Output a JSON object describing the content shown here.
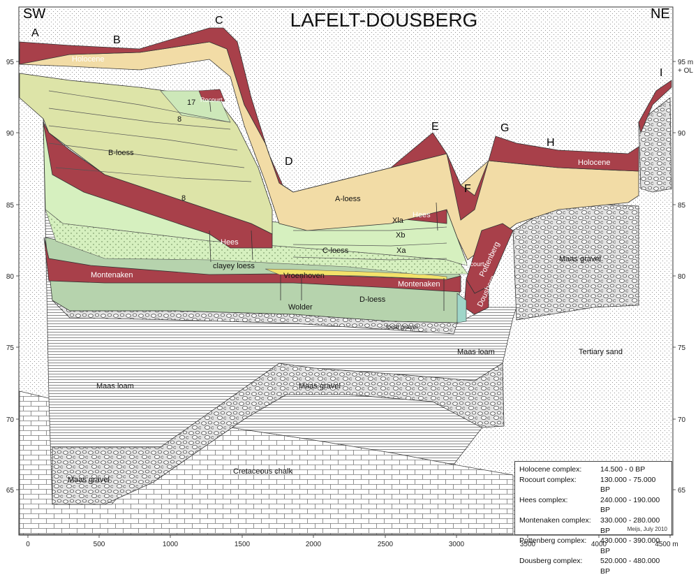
{
  "title": "LAFELT-DOUSBERG",
  "direction_left": "SW",
  "direction_right": "NE",
  "station_letters": [
    "A",
    "B",
    "C",
    "D",
    "E",
    "F",
    "G",
    "H",
    "I"
  ],
  "x_axis": {
    "ticks": [
      "0",
      "500",
      "1000",
      "1500",
      "2000",
      "2500",
      "3000",
      "3500",
      "4000",
      "4500 m"
    ]
  },
  "y_axis_left": {
    "ticks": [
      "95",
      "90",
      "85",
      "80",
      "75",
      "70",
      "65"
    ]
  },
  "y_axis_right": {
    "ticks": [
      "95 m",
      "+ OL",
      "90",
      "85",
      "80",
      "75",
      "70",
      "65"
    ]
  },
  "layer_labels": {
    "holocene": "Holocene",
    "a_loess": "A-loess",
    "b_loess": "B-loess",
    "c_loess": "C-loess",
    "d_loess": "D-loess",
    "rocourt": "Rocourt",
    "hees": "Hees",
    "montenaken": "Montenaken",
    "vroenhoven": "Vroenhoven",
    "wolder": "Wolder",
    "clayey_loess": "clayey loess",
    "local_gravel": "local gravel",
    "maas_gravel": "Maas gravel",
    "maas_loam": "Maas loam",
    "tertiary_sand": "Tertiary sand",
    "cretaceous_chalk": "Cretaceous chalk",
    "pottenberg": "Pottenberg",
    "dousberg": "Dousberg",
    "xla": "Xla",
    "xb": "Xb",
    "xa": "Xa",
    "n17": "17",
    "n8": "8"
  },
  "legend": {
    "rows": [
      {
        "name": "Holocene complex:",
        "range": "14.500 - 0 BP"
      },
      {
        "name": "Rocourt complex:",
        "range": "130.000 - 75.000 BP"
      },
      {
        "name": "Hees complex:",
        "range": "240.000 - 190.000 BP"
      },
      {
        "name": "Montenaken complex:",
        "range": "330.000 - 280.000 BP"
      },
      {
        "name": "Pottenberg complex:",
        "range": "430.000 - 390.000 BP"
      },
      {
        "name": "Dousberg complex:",
        "range": "520.000 - 480.000 BP"
      }
    ],
    "credit": "Meijs, July 2010"
  },
  "colors": {
    "holocene": "#a8404a",
    "a_loess": "#f2dca6",
    "b_loess": "#dde4a8",
    "c_loess": "#d6f0bf",
    "d_loess": "#b6d3ad",
    "paleosol": "#a8404a"
  }
}
